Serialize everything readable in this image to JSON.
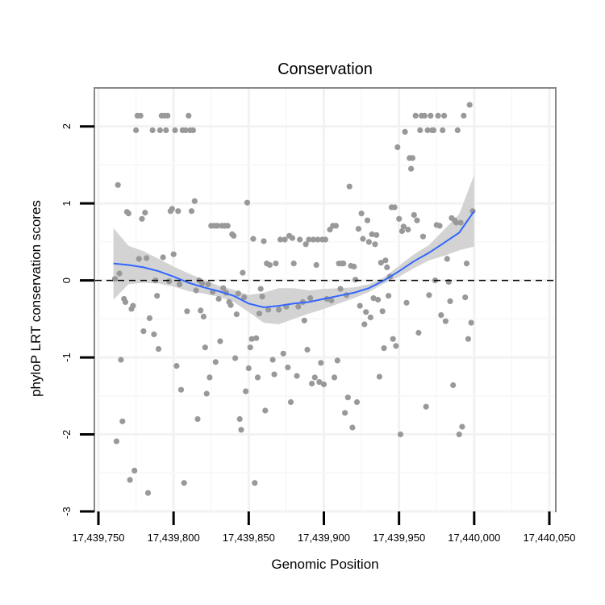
{
  "chart_data": {
    "type": "scatter",
    "title": "Conservation",
    "xlabel": "Genomic Position",
    "ylabel": "phyloP LRT conservation scores",
    "xlim": [
      17439750,
      17440050
    ],
    "ylim": [
      -3,
      2.5
    ],
    "x_ticks": [
      17439750,
      17439800,
      17439850,
      17439900,
      17439950,
      17440000,
      17440050
    ],
    "x_tick_labels": [
      "17,439,750",
      "17,439,800",
      "17,439,850",
      "17,439,900",
      "17,439,950",
      "17,440,000",
      "17,440,050"
    ],
    "y_ticks": [
      -3,
      -2,
      -1,
      0,
      1,
      2
    ],
    "y_tick_labels": [
      "-3",
      "-2",
      "-1",
      "0",
      "1",
      "2"
    ],
    "grid": true,
    "reference_line": {
      "y": 0,
      "style": "dashed",
      "color": "#000000"
    },
    "point_color": "#999999",
    "smooth_color": "#3366ff",
    "band_color": "#d3d3d3",
    "points": [
      [
        17439761,
        0.02
      ],
      [
        17439762,
        -2.09
      ],
      [
        17439763,
        1.24
      ],
      [
        17439764,
        0.09
      ],
      [
        17439765,
        -1.03
      ],
      [
        17439766,
        -1.83
      ],
      [
        17439767,
        -0.24
      ],
      [
        17439768,
        -0.28
      ],
      [
        17439769,
        0.89
      ],
      [
        17439770,
        0.87
      ],
      [
        17439771,
        -2.59
      ],
      [
        17439772,
        -0.37
      ],
      [
        17439773,
        -0.33
      ],
      [
        17439774,
        -2.47
      ],
      [
        17439775,
        1.95
      ],
      [
        17439776,
        2.14
      ],
      [
        17439777,
        0.28
      ],
      [
        17439778,
        2.14
      ],
      [
        17439779,
        0.8
      ],
      [
        17439780,
        -0.66
      ],
      [
        17439781,
        0.88
      ],
      [
        17439782,
        0.29
      ],
      [
        17439783,
        -2.76
      ],
      [
        17439784,
        -0.49
      ],
      [
        17439786,
        1.95
      ],
      [
        17439787,
        -0.7
      ],
      [
        17439788,
        0.0
      ],
      [
        17439789,
        -0.2
      ],
      [
        17439790,
        -0.89
      ],
      [
        17439791,
        1.95
      ],
      [
        17439792,
        2.14
      ],
      [
        17439793,
        0.3
      ],
      [
        17439794,
        2.14
      ],
      [
        17439795,
        1.95
      ],
      [
        17439796,
        2.14
      ],
      [
        17439797,
        -0.01
      ],
      [
        17439798,
        0.9
      ],
      [
        17439799,
        0.93
      ],
      [
        17439800,
        0.34
      ],
      [
        17439801,
        1.95
      ],
      [
        17439802,
        -1.11
      ],
      [
        17439803,
        0.9
      ],
      [
        17439804,
        -0.05
      ],
      [
        17439805,
        -1.42
      ],
      [
        17439806,
        1.95
      ],
      [
        17439807,
        -2.63
      ],
      [
        17439808,
        1.95
      ],
      [
        17439809,
        -0.4
      ],
      [
        17439810,
        2.14
      ],
      [
        17439811,
        1.95
      ],
      [
        17439812,
        0.9
      ],
      [
        17439813,
        1.95
      ],
      [
        17439814,
        1.03
      ],
      [
        17439815,
        -0.13
      ],
      [
        17439816,
        -1.8
      ],
      [
        17439817,
        0.0
      ],
      [
        17439818,
        -0.39
      ],
      [
        17439819,
        -0.04
      ],
      [
        17439820,
        -0.47
      ],
      [
        17439821,
        -0.87
      ],
      [
        17439822,
        -1.47
      ],
      [
        17439823,
        -0.05
      ],
      [
        17439824,
        -1.26
      ],
      [
        17439825,
        0.71
      ],
      [
        17439826,
        -0.15
      ],
      [
        17439827,
        0.71
      ],
      [
        17439828,
        -1.06
      ],
      [
        17439829,
        0.71
      ],
      [
        17439830,
        -0.24
      ],
      [
        17439831,
        -0.79
      ],
      [
        17439832,
        0.71
      ],
      [
        17439833,
        -0.1
      ],
      [
        17439834,
        0.71
      ],
      [
        17439835,
        -0.16
      ],
      [
        17439836,
        0.71
      ],
      [
        17439837,
        -0.28
      ],
      [
        17439838,
        -0.32
      ],
      [
        17439839,
        0.6
      ],
      [
        17439840,
        0.58
      ],
      [
        17439841,
        -1.01
      ],
      [
        17439842,
        -0.44
      ],
      [
        17439843,
        -0.17
      ],
      [
        17439844,
        -1.8
      ],
      [
        17439845,
        -1.94
      ],
      [
        17439846,
        0.1
      ],
      [
        17439847,
        -0.22
      ],
      [
        17439848,
        -1.44
      ],
      [
        17439849,
        1.01
      ],
      [
        17439850,
        -1.14
      ],
      [
        17439851,
        -0.87
      ],
      [
        17439852,
        -0.76
      ],
      [
        17439853,
        0.54
      ],
      [
        17439854,
        -2.63
      ],
      [
        17439855,
        -0.75
      ],
      [
        17439856,
        -1.26
      ],
      [
        17439857,
        -0.43
      ],
      [
        17439858,
        -0.11
      ],
      [
        17439859,
        -0.21
      ],
      [
        17439860,
        0.51
      ],
      [
        17439861,
        -1.69
      ],
      [
        17439862,
        0.22
      ],
      [
        17439863,
        -0.38
      ],
      [
        17439864,
        0.2
      ],
      [
        17439866,
        -1.03
      ],
      [
        17439867,
        -1.22
      ],
      [
        17439868,
        0.22
      ],
      [
        17439870,
        -0.38
      ],
      [
        17439871,
        0.53
      ],
      [
        17439873,
        -0.95
      ],
      [
        17439874,
        0.53
      ],
      [
        17439875,
        -0.34
      ],
      [
        17439876,
        -1.13
      ],
      [
        17439877,
        0.58
      ],
      [
        17439878,
        -1.58
      ],
      [
        17439879,
        0.55
      ],
      [
        17439880,
        0.22
      ],
      [
        17439882,
        -1.24
      ],
      [
        17439883,
        -0.34
      ],
      [
        17439884,
        0.53
      ],
      [
        17439886,
        -0.28
      ],
      [
        17439887,
        -0.52
      ],
      [
        17439888,
        0.47
      ],
      [
        17439889,
        -0.9
      ],
      [
        17439890,
        0.53
      ],
      [
        17439891,
        -0.23
      ],
      [
        17439892,
        -1.34
      ],
      [
        17439893,
        0.53
      ],
      [
        17439894,
        -1.26
      ],
      [
        17439895,
        0.2
      ],
      [
        17439896,
        0.53
      ],
      [
        17439897,
        -1.32
      ],
      [
        17439898,
        -1.07
      ],
      [
        17439899,
        0.53
      ],
      [
        17439900,
        -1.35
      ],
      [
        17439901,
        0.53
      ],
      [
        17439902,
        -0.24
      ],
      [
        17439904,
        0.66
      ],
      [
        17439905,
        -0.26
      ],
      [
        17439906,
        0.71
      ],
      [
        17439907,
        -1.26
      ],
      [
        17439908,
        0.71
      ],
      [
        17439909,
        -1.04
      ],
      [
        17439910,
        0.22
      ],
      [
        17439911,
        -0.11
      ],
      [
        17439912,
        0.22
      ],
      [
        17439913,
        0.22
      ],
      [
        17439914,
        -1.72
      ],
      [
        17439915,
        -0.19
      ],
      [
        17439916,
        -1.52
      ],
      [
        17439917,
        1.22
      ],
      [
        17439918,
        0.19
      ],
      [
        17439919,
        -1.91
      ],
      [
        17439920,
        0.18
      ],
      [
        17439921,
        0.01
      ],
      [
        17439922,
        -1.58
      ],
      [
        17439923,
        0.67
      ],
      [
        17439924,
        -0.33
      ],
      [
        17439925,
        0.87
      ],
      [
        17439926,
        0.54
      ],
      [
        17439927,
        -0.57
      ],
      [
        17439928,
        -0.41
      ],
      [
        17439929,
        0.78
      ],
      [
        17439930,
        0.5
      ],
      [
        17439931,
        -0.48
      ],
      [
        17439932,
        0.6
      ],
      [
        17439933,
        -0.23
      ],
      [
        17439934,
        0.47
      ],
      [
        17439935,
        0.59
      ],
      [
        17439936,
        -0.25
      ],
      [
        17439937,
        -1.25
      ],
      [
        17439938,
        0.23
      ],
      [
        17439939,
        -0.4
      ],
      [
        17439940,
        -0.88
      ],
      [
        17439941,
        0.26
      ],
      [
        17439942,
        0.17
      ],
      [
        17439943,
        -0.2
      ],
      [
        17439944,
        0.05
      ],
      [
        17439945,
        0.95
      ],
      [
        17439946,
        -0.76
      ],
      [
        17439947,
        0.95
      ],
      [
        17439948,
        -0.85
      ],
      [
        17439949,
        1.73
      ],
      [
        17439950,
        0.8
      ],
      [
        17439951,
        -2.0
      ],
      [
        17439952,
        0.64
      ],
      [
        17439953,
        0.7
      ],
      [
        17439954,
        1.93
      ],
      [
        17439955,
        -0.29
      ],
      [
        17439956,
        0.66
      ],
      [
        17439957,
        1.59
      ],
      [
        17439958,
        1.45
      ],
      [
        17439959,
        1.59
      ],
      [
        17439960,
        0.85
      ],
      [
        17439961,
        2.14
      ],
      [
        17439962,
        0.78
      ],
      [
        17439963,
        -0.68
      ],
      [
        17439964,
        1.95
      ],
      [
        17439965,
        2.14
      ],
      [
        17439966,
        0.57
      ],
      [
        17439967,
        2.14
      ],
      [
        17439968,
        -1.64
      ],
      [
        17439969,
        1.95
      ],
      [
        17439970,
        -0.19
      ],
      [
        17439971,
        2.14
      ],
      [
        17439972,
        1.95
      ],
      [
        17439973,
        1.95
      ],
      [
        17439974,
        0.0
      ],
      [
        17439975,
        0.72
      ],
      [
        17439976,
        2.14
      ],
      [
        17439977,
        0.71
      ],
      [
        17439978,
        -0.45
      ],
      [
        17439979,
        1.95
      ],
      [
        17439980,
        2.14
      ],
      [
        17439981,
        -0.53
      ],
      [
        17439982,
        0.28
      ],
      [
        17439983,
        -0.02
      ],
      [
        17439984,
        -0.27
      ],
      [
        17439985,
        0.81
      ],
      [
        17439986,
        -1.36
      ],
      [
        17439987,
        0.78
      ],
      [
        17439988,
        0.75
      ],
      [
        17439989,
        1.95
      ],
      [
        17439990,
        -2.0
      ],
      [
        17439991,
        0.75
      ],
      [
        17439992,
        -1.9
      ],
      [
        17439993,
        2.14
      ],
      [
        17439994,
        -0.22
      ],
      [
        17439995,
        0.22
      ],
      [
        17439996,
        -0.76
      ],
      [
        17439997,
        2.28
      ],
      [
        17439998,
        -0.55
      ],
      [
        17439999,
        0.9
      ]
    ],
    "smooth": {
      "x": [
        17439760,
        17439770,
        17439780,
        17439790,
        17439800,
        17439810,
        17439820,
        17439830,
        17439840,
        17439850,
        17439860,
        17439870,
        17439880,
        17439890,
        17439900,
        17439910,
        17439920,
        17439930,
        17439940,
        17439950,
        17439960,
        17439970,
        17439980,
        17439990,
        17440000
      ],
      "y": [
        0.22,
        0.2,
        0.17,
        0.12,
        0.05,
        -0.03,
        -0.09,
        -0.14,
        -0.2,
        -0.3,
        -0.35,
        -0.33,
        -0.3,
        -0.28,
        -0.24,
        -0.2,
        -0.16,
        -0.1,
        0.0,
        0.12,
        0.25,
        0.36,
        0.49,
        0.62,
        0.9
      ],
      "lower": [
        -0.25,
        -0.05,
        -0.03,
        -0.04,
        -0.08,
        -0.14,
        -0.17,
        -0.21,
        -0.28,
        -0.41,
        -0.55,
        -0.57,
        -0.5,
        -0.43,
        -0.37,
        -0.3,
        -0.23,
        -0.15,
        -0.04,
        0.05,
        0.16,
        0.26,
        0.32,
        0.39,
        0.44
      ],
      "upper": [
        0.68,
        0.45,
        0.38,
        0.28,
        0.18,
        0.09,
        0.01,
        -0.07,
        -0.12,
        -0.19,
        -0.16,
        -0.1,
        -0.1,
        -0.13,
        -0.11,
        -0.1,
        -0.09,
        -0.05,
        0.04,
        0.19,
        0.34,
        0.46,
        0.66,
        0.86,
        1.37
      ]
    }
  }
}
